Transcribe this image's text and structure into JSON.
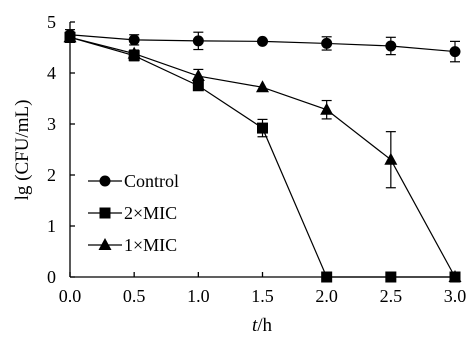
{
  "chart_data": {
    "type": "line",
    "title": "",
    "xlabel_var": "t",
    "xlabel_unit": "/h",
    "ylabel": "lg (CFU/mL)",
    "x": [
      0.0,
      0.5,
      1.0,
      1.5,
      2.0,
      2.5,
      3.0
    ],
    "xticks": [
      "0.0",
      "0.5",
      "1.0",
      "1.5",
      "2.0",
      "2.5",
      "3.0"
    ],
    "yticks": [
      "0",
      "1",
      "2",
      "3",
      "4",
      "5"
    ],
    "xlim": [
      0,
      3
    ],
    "ylim": [
      0,
      5
    ],
    "grid": false,
    "legend_position": "left-middle",
    "series": [
      {
        "name": "Control",
        "marker": "circle",
        "values": [
          4.75,
          4.65,
          4.63,
          4.62,
          4.58,
          4.53,
          4.42
        ],
        "errors": [
          0.1,
          0.1,
          0.17,
          0.05,
          0.13,
          0.17,
          0.2
        ]
      },
      {
        "name": "2×MIC",
        "marker": "square",
        "values": [
          4.7,
          4.34,
          3.75,
          2.92,
          0.0,
          0.0,
          0.0
        ],
        "errors": [
          0.1,
          0.1,
          0.08,
          0.17,
          0.0,
          0.0,
          0.0
        ]
      },
      {
        "name": "1×MIC",
        "marker": "triangle",
        "values": [
          4.7,
          4.38,
          3.94,
          3.72,
          3.28,
          2.3,
          0.0
        ],
        "errors": [
          0.1,
          0.07,
          0.13,
          0.05,
          0.18,
          0.55,
          0.0
        ]
      }
    ]
  }
}
